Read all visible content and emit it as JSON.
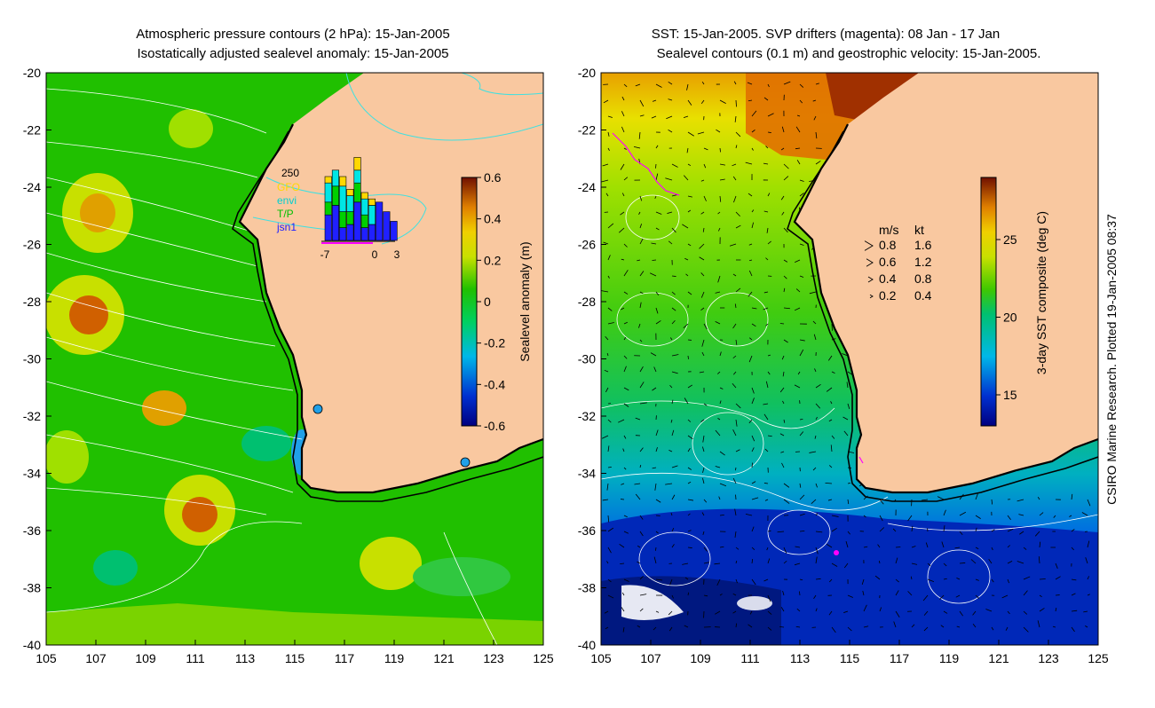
{
  "chart_data": [
    {
      "type": "heatmap",
      "title_line1": "Atmospheric pressure contours (2 hPa): 15-Jan-2005",
      "title_line2": "Isostatically adjusted sealevel anomaly: 15-Jan-2005",
      "xlim": [
        105,
        125
      ],
      "ylim": [
        -40,
        -20
      ],
      "xticks": [
        "105",
        "107",
        "109",
        "111",
        "113",
        "115",
        "117",
        "119",
        "121",
        "123",
        "125"
      ],
      "yticks": [
        "-20",
        "-22",
        "-24",
        "-26",
        "-28",
        "-30",
        "-32",
        "-34",
        "-36",
        "-38",
        "-40"
      ],
      "colorbar": {
        "label": "Sealevel anomaly (m)",
        "range": [
          -0.6,
          0.6
        ],
        "ticks": [
          "0.6",
          "0.4",
          "0.2",
          "0",
          "-0.2",
          "-0.4",
          "-0.6"
        ]
      },
      "inset": {
        "ymax_label": "250",
        "legend": [
          "GFO",
          "envi",
          "T/P",
          "jsn1"
        ],
        "legend_colors": [
          "#ffd800",
          "#00e5e5",
          "#00d000",
          "#2020ff"
        ],
        "xticks": [
          "-7",
          "0",
          "3"
        ],
        "bars": [
          {
            "day": -7,
            "gfo": 20,
            "envi": 60,
            "tp": 40,
            "jsn1": 80
          },
          {
            "day": -6,
            "gfo": 0,
            "envi": 50,
            "tp": 60,
            "jsn1": 110
          },
          {
            "day": -5,
            "gfo": 30,
            "envi": 80,
            "tp": 50,
            "jsn1": 40
          },
          {
            "day": -4,
            "gfo": 20,
            "envi": 50,
            "tp": 40,
            "jsn1": 50
          },
          {
            "day": -3,
            "gfo": 40,
            "envi": 40,
            "tp": 60,
            "jsn1": 120
          },
          {
            "day": -2,
            "gfo": 20,
            "envi": 50,
            "tp": 40,
            "jsn1": 40
          },
          {
            "day": -1,
            "gfo": 20,
            "envi": 60,
            "tp": 0,
            "jsn1": 50
          },
          {
            "day": 0,
            "gfo": 0,
            "envi": 0,
            "tp": 0,
            "jsn1": 120
          },
          {
            "day": 1,
            "gfo": 0,
            "envi": 0,
            "tp": 0,
            "jsn1": 90
          },
          {
            "day": 2,
            "gfo": 0,
            "envi": 0,
            "tp": 0,
            "jsn1": 60
          }
        ]
      }
    },
    {
      "type": "heatmap",
      "title_line1": "SST: 15-Jan-2005. SVP drifters (magenta): 08 Jan - 17 Jan",
      "title_line2": "Sealevel contours (0.1 m) and geostrophic velocity: 15-Jan-2005.",
      "xlim": [
        105,
        125
      ],
      "ylim": [
        -40,
        -20
      ],
      "xticks": [
        "105",
        "107",
        "109",
        "111",
        "113",
        "115",
        "117",
        "119",
        "121",
        "123",
        "125"
      ],
      "yticks": [
        "-20",
        "-22",
        "-24",
        "-26",
        "-28",
        "-30",
        "-32",
        "-34",
        "-36",
        "-38",
        "-40"
      ],
      "colorbar": {
        "label": "3-day SST composite (deg C)",
        "range": [
          13,
          29
        ],
        "ticks": [
          "25",
          "20",
          "15"
        ]
      },
      "velocity_legend": {
        "header_ms": "m/s",
        "header_kt": "kt",
        "rows": [
          {
            "ms": "0.8",
            "kt": "1.6"
          },
          {
            "ms": "0.6",
            "kt": "1.2"
          },
          {
            "ms": "0.4",
            "kt": "0.8"
          },
          {
            "ms": "0.2",
            "kt": "0.4"
          }
        ]
      }
    }
  ],
  "side_caption": "CSIRO Marine Research. Plotted 19-Jan-2005 08:37",
  "colors": {
    "land": "#f9c8a0",
    "coast": "#000000",
    "contour": "#ffffff",
    "drifter": "#ff00ff"
  }
}
